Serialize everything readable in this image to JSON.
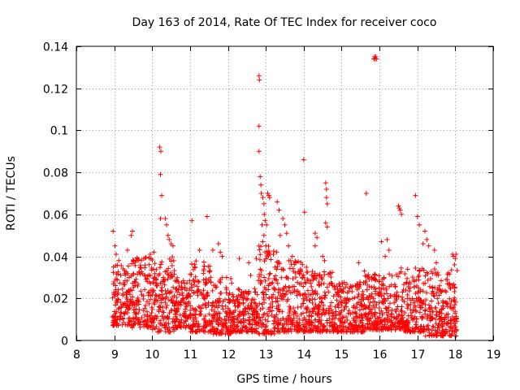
{
  "chart_data": {
    "type": "scatter",
    "title": "Day 163 of 2014, Rate Of TEC Index for receiver coco",
    "xlabel": "GPS time / hours",
    "ylabel": "ROTI / TECUs",
    "xlim": [
      8,
      19
    ],
    "ylim": [
      0,
      0.14
    ],
    "x_ticks": [
      8,
      9,
      10,
      11,
      12,
      13,
      14,
      15,
      16,
      17,
      18,
      19
    ],
    "x_tick_labels": [
      "8",
      "9",
      "10",
      "11",
      "12",
      "13",
      "14",
      "15",
      "16",
      "17",
      "18",
      "19"
    ],
    "y_ticks": [
      0,
      0.02,
      0.04,
      0.06,
      0.08,
      0.1,
      0.12,
      0.14
    ],
    "y_tick_labels": [
      "0",
      "0.02",
      "0.04",
      "0.06",
      "0.08",
      "0.1",
      "0.12",
      "0.14"
    ],
    "grid": true,
    "marker": "+",
    "color": "#ff0000",
    "series": [
      {
        "name": "ROTI",
        "points": [
          [
            8.97,
            0.052
          ],
          [
            9.02,
            0.045
          ],
          [
            9.05,
            0.041
          ],
          [
            9.12,
            0.038
          ],
          [
            9.35,
            0.043
          ],
          [
            9.45,
            0.05
          ],
          [
            9.48,
            0.052
          ],
          [
            9.78,
            0.039
          ],
          [
            9.95,
            0.041
          ],
          [
            10.2,
            0.092
          ],
          [
            10.23,
            0.09
          ],
          [
            10.22,
            0.079
          ],
          [
            10.25,
            0.069
          ],
          [
            10.22,
            0.058
          ],
          [
            10.35,
            0.058
          ],
          [
            10.38,
            0.055
          ],
          [
            10.42,
            0.05
          ],
          [
            10.45,
            0.048
          ],
          [
            10.5,
            0.046
          ],
          [
            10.55,
            0.045
          ],
          [
            10.05,
            0.042
          ],
          [
            11.05,
            0.057
          ],
          [
            11.45,
            0.059
          ],
          [
            11.25,
            0.043
          ],
          [
            11.6,
            0.043
          ],
          [
            11.75,
            0.046
          ],
          [
            11.8,
            0.042
          ],
          [
            11.85,
            0.04
          ],
          [
            12.3,
            0.039
          ],
          [
            12.55,
            0.037
          ],
          [
            12.6,
            0.031
          ],
          [
            12.75,
            0.039
          ],
          [
            12.82,
            0.126
          ],
          [
            12.83,
            0.124
          ],
          [
            12.82,
            0.102
          ],
          [
            12.82,
            0.09
          ],
          [
            12.85,
            0.078
          ],
          [
            12.87,
            0.074
          ],
          [
            12.88,
            0.07
          ],
          [
            12.92,
            0.068
          ],
          [
            12.95,
            0.065
          ],
          [
            12.96,
            0.06
          ],
          [
            12.98,
            0.057
          ],
          [
            12.9,
            0.055
          ],
          [
            13.05,
            0.07
          ],
          [
            13.08,
            0.069
          ],
          [
            13.1,
            0.068
          ],
          [
            13.02,
            0.055
          ],
          [
            12.95,
            0.05
          ],
          [
            12.92,
            0.047
          ],
          [
            13.0,
            0.045
          ],
          [
            13.3,
            0.066
          ],
          [
            13.35,
            0.062
          ],
          [
            13.45,
            0.058
          ],
          [
            13.5,
            0.055
          ],
          [
            13.55,
            0.051
          ],
          [
            13.38,
            0.05
          ],
          [
            13.6,
            0.045
          ],
          [
            13.7,
            0.04
          ],
          [
            14.0,
            0.086
          ],
          [
            14.02,
            0.061
          ],
          [
            14.3,
            0.051
          ],
          [
            14.35,
            0.049
          ],
          [
            14.3,
            0.045
          ],
          [
            14.58,
            0.075
          ],
          [
            14.6,
            0.072
          ],
          [
            14.6,
            0.068
          ],
          [
            14.62,
            0.065
          ],
          [
            14.58,
            0.056
          ],
          [
            14.62,
            0.054
          ],
          [
            14.5,
            0.04
          ],
          [
            14.55,
            0.038
          ],
          [
            15.45,
            0.037
          ],
          [
            15.6,
            0.033
          ],
          [
            15.65,
            0.07
          ],
          [
            15.9,
            0.029
          ],
          [
            15.85,
            0.134
          ],
          [
            15.87,
            0.135
          ],
          [
            15.88,
            0.134
          ],
          [
            15.9,
            0.135
          ],
          [
            15.92,
            0.134
          ],
          [
            16.05,
            0.047
          ],
          [
            16.2,
            0.048
          ],
          [
            16.25,
            0.043
          ],
          [
            16.15,
            0.04
          ],
          [
            16.5,
            0.064
          ],
          [
            16.52,
            0.063
          ],
          [
            16.55,
            0.062
          ],
          [
            16.58,
            0.06
          ],
          [
            16.95,
            0.069
          ],
          [
            17.0,
            0.059
          ],
          [
            17.05,
            0.055
          ],
          [
            17.2,
            0.052
          ],
          [
            17.25,
            0.048
          ],
          [
            17.15,
            0.046
          ],
          [
            17.3,
            0.045
          ],
          [
            17.45,
            0.043
          ],
          [
            17.5,
            0.037
          ],
          [
            17.93,
            0.041
          ],
          [
            17.95,
            0.04
          ],
          [
            18.0,
            0.039
          ],
          [
            18.02,
            0.041
          ],
          [
            17.98,
            0.036
          ]
        ],
        "bands": [
          {
            "from": 8.95,
            "to": 9.4,
            "low": 0.007,
            "high": 0.036
          },
          {
            "from": 9.4,
            "to": 10.0,
            "low": 0.006,
            "high": 0.04
          },
          {
            "from": 10.0,
            "to": 10.6,
            "low": 0.004,
            "high": 0.04
          },
          {
            "from": 10.6,
            "to": 11.0,
            "low": 0.006,
            "high": 0.03
          },
          {
            "from": 11.0,
            "to": 11.6,
            "low": 0.004,
            "high": 0.038
          },
          {
            "from": 11.6,
            "to": 12.1,
            "low": 0.003,
            "high": 0.03
          },
          {
            "from": 12.1,
            "to": 12.8,
            "low": 0.004,
            "high": 0.025
          },
          {
            "from": 12.8,
            "to": 13.3,
            "low": 0.003,
            "high": 0.045
          },
          {
            "from": 13.3,
            "to": 14.2,
            "low": 0.004,
            "high": 0.038
          },
          {
            "from": 14.2,
            "to": 14.8,
            "low": 0.004,
            "high": 0.033
          },
          {
            "from": 14.8,
            "to": 15.6,
            "low": 0.004,
            "high": 0.028
          },
          {
            "from": 15.6,
            "to": 16.4,
            "low": 0.005,
            "high": 0.032
          },
          {
            "from": 16.4,
            "to": 17.2,
            "low": 0.004,
            "high": 0.035
          },
          {
            "from": 17.2,
            "to": 18.05,
            "low": 0.002,
            "high": 0.034
          }
        ]
      }
    ]
  }
}
